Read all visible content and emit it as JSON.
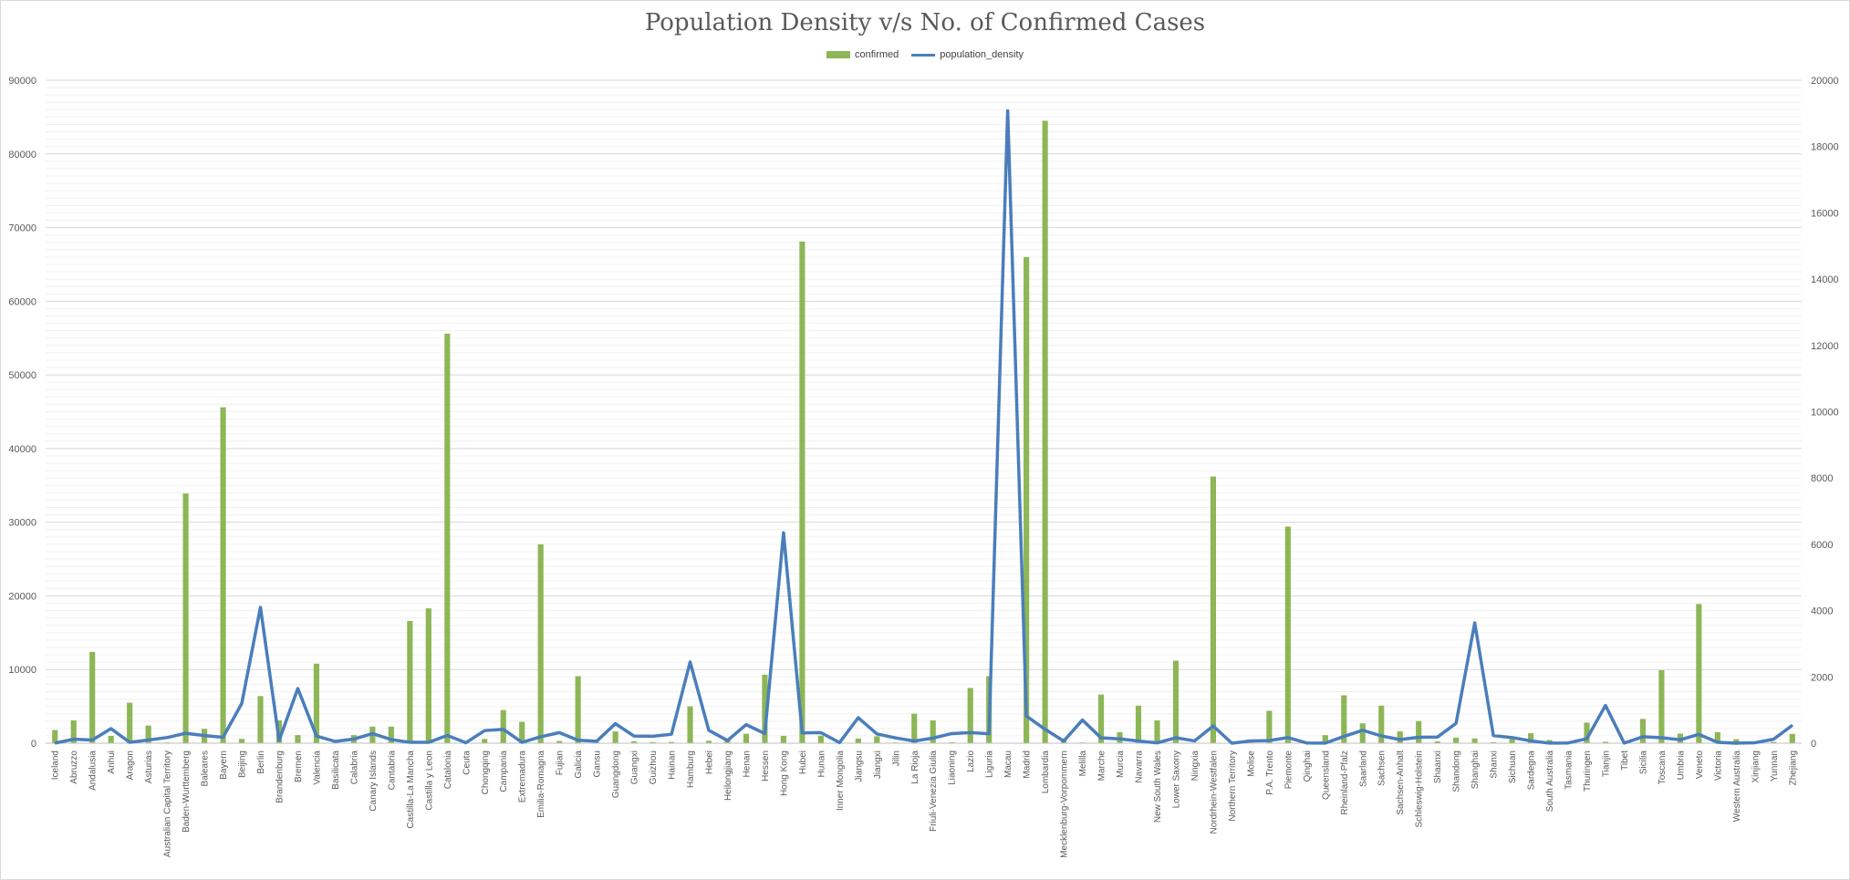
{
  "chart_data": {
    "type": "bar",
    "title": "Population Density v/s No. of Confirmed Cases",
    "xlabel": "",
    "ylabel": "",
    "y2label": "",
    "ylim": [
      0,
      90000
    ],
    "yticks": [
      0,
      10000,
      20000,
      30000,
      40000,
      50000,
      60000,
      70000,
      80000,
      90000
    ],
    "y2lim": [
      0,
      20000
    ],
    "y2ticks": [
      0,
      2000,
      4000,
      6000,
      8000,
      10000,
      12000,
      14000,
      16000,
      18000,
      20000
    ],
    "grid": true,
    "legend_position": "top",
    "colors": {
      "confirmed": "#8db656",
      "population_density": "#4a7ebb",
      "grid": "#d9d9d9",
      "text": "#595959"
    },
    "categories": [
      "Iceland",
      "Abruzzo",
      "Andalusia",
      "Anhui",
      "Aragon",
      "Asturias",
      "Australian Capital Territory",
      "Baden-Wurttemberg",
      "Baleares",
      "Bayern",
      "Beijing",
      "Berlin",
      "Brandenburg",
      "Bremen",
      "Valencia",
      "Basilicata",
      "Calabria",
      "Canary Islands",
      "Cantabria",
      "Castilla-La Mancha",
      "Castilla y Leon",
      "Catalonia",
      "Ceuta",
      "Chongqing",
      "Campania",
      "Extremadura",
      "Emilia-Romagna",
      "Fujian",
      "Galicia",
      "Gansu",
      "Guangdong",
      "Guangxi",
      "Guizhou",
      "Hainan",
      "Hamburg",
      "Hebei",
      "Heilongjiang",
      "Henan",
      "Hessen",
      "Hong Kong",
      "Hubei",
      "Hunan",
      "Inner Mongolia",
      "Jiangsu",
      "Jiangxi",
      "Jilin",
      "La Rioja",
      "Friuli-Venezia Giulia",
      "Liaoning",
      "Lazio",
      "Liguria",
      "Macau",
      "Madrid",
      "Lombardia",
      "Mecklenburg-Vorpommern",
      "Melilla",
      "Marche",
      "Murcia",
      "Navarra",
      "New South Wales",
      "Lower Saxony",
      "Ningxia",
      "Nordrhein-Westfalen",
      "Northern Territory",
      "Molise",
      "P.A. Trento",
      "Piemonte",
      "Qinghai",
      "Queensland",
      "Rheinland-Pfalz",
      "Saarland",
      "Sachsen",
      "Sachsen-Anhalt",
      "Schleswig-Holstein",
      "Shaanxi",
      "Shandong",
      "Shanghai",
      "Shanxi",
      "Sichuan",
      "Sardegna",
      "South Australia",
      "Tasmania",
      "Thuringen",
      "Tianjin",
      "Tibet",
      "Sicilia",
      "Toscana",
      "Umbria",
      "Veneto",
      "Victoria",
      "Western Australia",
      "Xinjiang",
      "Yunnan",
      "Zhejiang"
    ],
    "series": [
      {
        "name": "confirmed",
        "type": "bar",
        "axis": "left",
        "values": [
          1790,
          3100,
          12400,
          990,
          5500,
          2400,
          100,
          33900,
          1950,
          45600,
          590,
          6400,
          3100,
          1100,
          10800,
          360,
          1100,
          2250,
          2250,
          16600,
          18300,
          55600,
          110,
          580,
          4500,
          2900,
          27000,
          300,
          9100,
          140,
          1600,
          260,
          150,
          170,
          5000,
          320,
          490,
          1280,
          9300,
          1000,
          68100,
          1020,
          75,
          630,
          935,
          95,
          4000,
          3100,
          125,
          7500,
          9100,
          45,
          66000,
          84500,
          650,
          100,
          6600,
          1500,
          5100,
          3100,
          11200,
          75,
          36200,
          30,
          300,
          4400,
          29400,
          20,
          1100,
          6500,
          2700,
          5100,
          1600,
          3000,
          250,
          760,
          640,
          135,
          560,
          1350,
          440,
          220,
          2800,
          190,
          1,
          3300,
          9900,
          1300,
          18900,
          1500,
          550,
          76,
          180,
          1270
        ]
      },
      {
        "name": "population_density",
        "type": "line",
        "axis": "right",
        "values": [
          3,
          120,
          96,
          440,
          28,
          97,
          170,
          300,
          230,
          180,
          1200,
          4100,
          85,
          1650,
          215,
          55,
          125,
          290,
          110,
          26,
          26,
          235,
          15,
          380,
          420,
          26,
          195,
          320,
          90,
          60,
          590,
          215,
          210,
          270,
          2450,
          390,
          80,
          560,
          290,
          6350,
          310,
          320,
          20,
          770,
          280,
          160,
          65,
          155,
          290,
          320,
          285,
          19080,
          820,
          420,
          65,
          700,
          160,
          130,
          65,
          9,
          165,
          70,
          520,
          0,
          70,
          80,
          170,
          8,
          3,
          205,
          390,
          220,
          110,
          180,
          185,
          600,
          3630,
          230,
          170,
          70,
          2,
          8,
          135,
          1140,
          3,
          195,
          165,
          105,
          265,
          28,
          1,
          15,
          120,
          540
        ]
      }
    ]
  }
}
